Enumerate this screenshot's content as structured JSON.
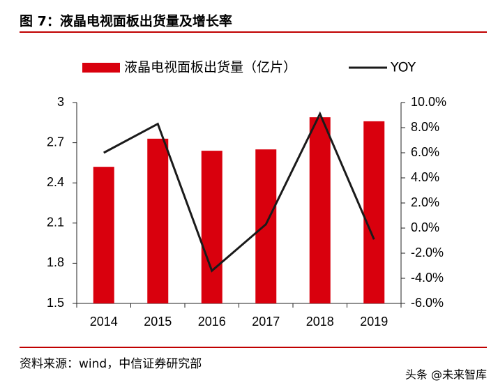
{
  "chart_data": {
    "type": "bar",
    "title": "图 7：液晶电视面板出货量及增长率",
    "source": "资料来源：wind，中信证券研究部",
    "watermark": "头条 @未来智库",
    "categories": [
      "2014",
      "2015",
      "2016",
      "2017",
      "2018",
      "2019"
    ],
    "series": [
      {
        "name": "液晶电视面板出货量（亿片）",
        "type": "bar",
        "color": "#d9000d",
        "values": [
          2.52,
          2.73,
          2.64,
          2.65,
          2.89,
          2.86
        ]
      },
      {
        "name": "YOY",
        "type": "line",
        "axis": "y2",
        "color": "#1a1a1a",
        "values": [
          6.0,
          8.3,
          -3.4,
          0.3,
          9.1,
          -0.9
        ]
      }
    ],
    "ylim": [
      1.5,
      3
    ],
    "yticks": [
      1.5,
      1.8,
      2.1,
      2.4,
      2.7,
      3
    ],
    "y2lim": [
      -6,
      10
    ],
    "y2ticks": [
      {
        "value": -6,
        "label": "-6.0%"
      },
      {
        "value": -4,
        "label": "-4.0%"
      },
      {
        "value": -2,
        "label": "-2.0%"
      },
      {
        "value": 0,
        "label": "0.0%"
      },
      {
        "value": 2,
        "label": "2.0%"
      },
      {
        "value": 4,
        "label": "4.0%"
      },
      {
        "value": 6,
        "label": "6.0%"
      },
      {
        "value": 8,
        "label": "8.0%"
      },
      {
        "value": 10,
        "label": "10.0%"
      }
    ],
    "grid": false
  }
}
